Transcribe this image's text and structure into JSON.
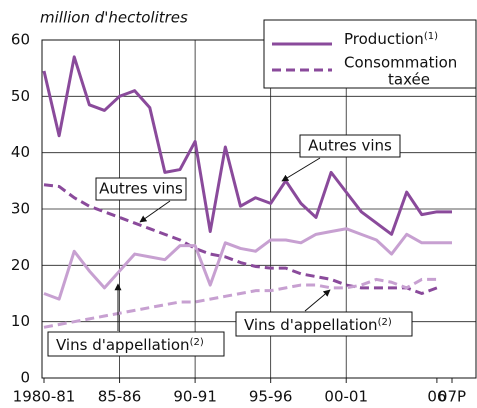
{
  "chart_data": {
    "type": "line",
    "y_label": "million d'hectolitres",
    "x": [
      1980,
      1981,
      1982,
      1983,
      1984,
      1985,
      1986,
      1987,
      1988,
      1989,
      1990,
      1991,
      1992,
      1993,
      1994,
      1995,
      1996,
      1997,
      1998,
      1999,
      2000,
      2001,
      2002,
      2003,
      2004,
      2005,
      2006,
      2007
    ],
    "xlim": [
      1980,
      2007
    ],
    "xticks": [
      {
        "value": 1980,
        "label": "1980-81"
      },
      {
        "value": 1985,
        "label": "85-86"
      },
      {
        "value": 1990,
        "label": "90-91"
      },
      {
        "value": 1995,
        "label": "95-96"
      },
      {
        "value": 2000,
        "label": "00-01"
      },
      {
        "value": 2006,
        "label": "06"
      },
      {
        "value": 2007,
        "label": "07P"
      }
    ],
    "ylim": [
      0,
      60
    ],
    "yticks": [
      0,
      10,
      20,
      30,
      40,
      50,
      60
    ],
    "grid": true,
    "series": [
      {
        "color": "#8a4a9b",
        "dash": false,
        "values": [
          54.5,
          43,
          57,
          48.5,
          47.5,
          50,
          51,
          48,
          36.5,
          37,
          42,
          26,
          41,
          30.5,
          32,
          31,
          35,
          31,
          28.5,
          36.5,
          33,
          29.5,
          27.5,
          25.5,
          33,
          29,
          29.5,
          29.5
        ]
      },
      {
        "color": "#8a4a9b",
        "dash": true,
        "values": [
          34.3,
          34,
          32,
          30.5,
          29.5,
          28.5,
          27.5,
          26.5,
          25.5,
          24.5,
          23,
          22,
          21.5,
          20.5,
          19.8,
          19.5,
          19.5,
          18.5,
          18,
          17.5,
          16.5,
          16,
          16,
          16,
          16,
          15,
          16,
          null
        ]
      },
      {
        "color": "#c7a0d1",
        "dash": false,
        "values": [
          15,
          14,
          22.5,
          19,
          16,
          19,
          22,
          21.5,
          21,
          23.5,
          23.5,
          16.5,
          24,
          23,
          22.5,
          24.5,
          24.5,
          24,
          25.5,
          26,
          26.5,
          25.5,
          24.5,
          22,
          25.5,
          24,
          24,
          24
        ]
      },
      {
        "color": "#c7a0d1",
        "dash": true,
        "values": [
          9,
          9.5,
          10,
          10.5,
          11,
          11.5,
          12,
          12.5,
          13,
          13.5,
          13.5,
          14,
          14.5,
          15,
          15.5,
          15.5,
          16,
          16.5,
          16.5,
          16,
          16,
          16.5,
          17.5,
          17,
          16,
          17.5,
          17.5,
          null
        ]
      }
    ],
    "legend": [
      {
        "label": "Production",
        "note": "(1)"
      },
      {
        "label": "Consommation",
        "label2": "taxée"
      }
    ],
    "annotations": [
      {
        "text": "Autres vins"
      },
      {
        "text": "Autres vins"
      },
      {
        "text": "Vins d'appellation",
        "note": "(2)"
      },
      {
        "text": "Vins d'appellation",
        "note": "(2)"
      }
    ]
  }
}
